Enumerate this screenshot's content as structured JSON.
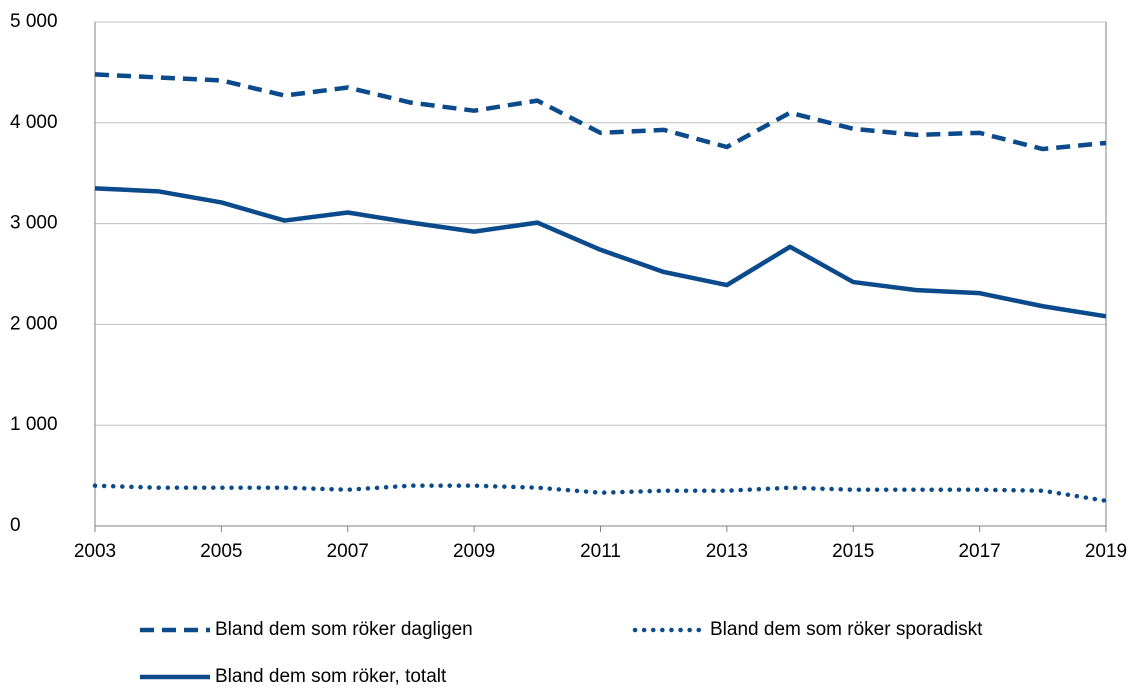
{
  "chart_data": {
    "type": "line",
    "x": [
      2003,
      2004,
      2005,
      2006,
      2007,
      2008,
      2009,
      2010,
      2011,
      2012,
      2013,
      2014,
      2015,
      2016,
      2017,
      2018,
      2019
    ],
    "series": [
      {
        "name": "Bland dem som röker dagligen",
        "color": "#0b4a8b",
        "style": "dashed",
        "values": [
          4480,
          4450,
          4420,
          4270,
          4350,
          4200,
          4120,
          4220,
          3900,
          3930,
          3760,
          4100,
          3940,
          3880,
          3900,
          3740,
          3800
        ]
      },
      {
        "name": "Bland dem som röker sporadiskt",
        "color": "#0b4a8b",
        "style": "dotted",
        "values": [
          400,
          380,
          380,
          380,
          360,
          400,
          400,
          380,
          330,
          350,
          350,
          380,
          360,
          360,
          360,
          350,
          250
        ]
      },
      {
        "name": "Bland dem som röker, totalt",
        "color": "#0b4a8b",
        "style": "solid",
        "values": [
          3350,
          3320,
          3210,
          3030,
          3110,
          3010,
          2920,
          3010,
          2740,
          2520,
          2390,
          2770,
          2420,
          2340,
          2310,
          2180,
          2080
        ]
      }
    ],
    "xlim": [
      2003,
      2019
    ],
    "xticks": [
      2003,
      2005,
      2007,
      2009,
      2011,
      2013,
      2015,
      2017,
      2019
    ],
    "ylim": [
      0,
      5000
    ],
    "yticks": [
      0,
      {
        "value": 1000,
        "label": "1 000"
      },
      {
        "value": 2000,
        "label": "2 000"
      },
      {
        "value": 3000,
        "label": "3 000"
      },
      {
        "value": 4000,
        "label": "4 000"
      },
      {
        "value": 5000,
        "label": "5 000"
      }
    ],
    "grid": true,
    "legend": "bottom"
  }
}
